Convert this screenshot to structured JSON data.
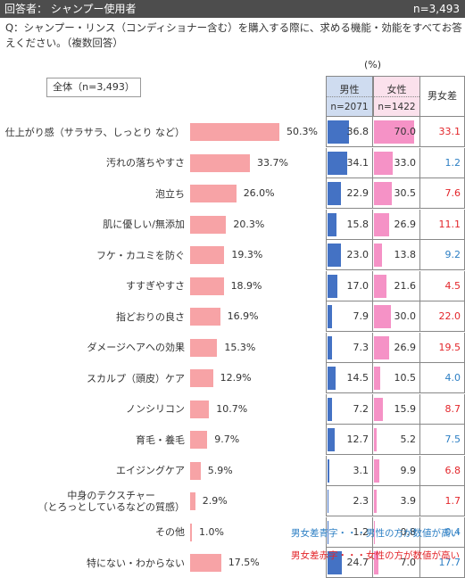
{
  "header": {
    "respondent": "回答者： シャンプー使用者",
    "n": "n=3,493"
  },
  "question": "Q：シャンプー・リンス（コンディショナー含む）を購入する際に、求める機能・効能をすべてお答えください。（複数回答）",
  "overall_label": "全体（n=3,493）",
  "unit": "(%)",
  "table_headers": {
    "male": "男性",
    "male_n": "n=2071",
    "female": "女性",
    "female_n": "n=1422",
    "diff": "男女差"
  },
  "legend": {
    "blue": "男女差青字・・・男性の方が数値が高い",
    "red": "男女差赤字・・・女性の方が数値が高い",
    "blue_color": "#2d7fc4",
    "red_color": "#e3262b"
  },
  "chart_data": {
    "type": "bar",
    "orientation": "horizontal",
    "categories": [
      "仕上がり感（サラサラ、しっとり など）",
      "汚れの落ちやすさ",
      "泡立ち",
      "肌に優しい/無添加",
      "フケ・カユミを防ぐ",
      "すすぎやすさ",
      "指どおりの良さ",
      "ダメージヘアへの効果",
      "スカルプ（頭皮）ケア",
      "ノンシリコン",
      "育毛・養毛",
      "エイジングケア",
      "中身のテクスチャー\n（とろっとしているなどの質感）",
      "その他",
      "特にない・わからない"
    ],
    "series": [
      {
        "values": [
          50.3,
          33.7,
          26.0,
          20.3,
          19.3,
          18.9,
          16.9,
          15.3,
          12.9,
          10.7,
          9.7,
          5.9,
          2.9,
          1.0,
          17.5
        ]
      },
      {
        "name": "男性",
        "values": [
          36.8,
          34.1,
          22.9,
          15.8,
          23.0,
          17.0,
          7.9,
          7.3,
          14.5,
          7.2,
          12.7,
          3.1,
          2.3,
          1.2,
          24.7
        ]
      },
      {
        "name": "女性",
        "values": [
          70.0,
          33.0,
          30.5,
          26.9,
          13.8,
          21.6,
          30.0,
          26.9,
          10.5,
          15.9,
          5.2,
          9.9,
          3.9,
          0.8,
          7.0
        ]
      }
    ],
    "diff": [
      33.1,
      1.2,
      7.6,
      11.1,
      9.2,
      4.5,
      22.0,
      19.5,
      4.0,
      8.7,
      7.5,
      6.8,
      1.7,
      0.4,
      17.7
    ],
    "diff_color": [
      "red",
      "blue",
      "red",
      "red",
      "blue",
      "red",
      "red",
      "red",
      "blue",
      "red",
      "blue",
      "red",
      "red",
      "blue",
      "blue"
    ],
    "bar_color": "#f7a3a6",
    "male_color": "#4472c4",
    "female_color": "#f592c6"
  }
}
